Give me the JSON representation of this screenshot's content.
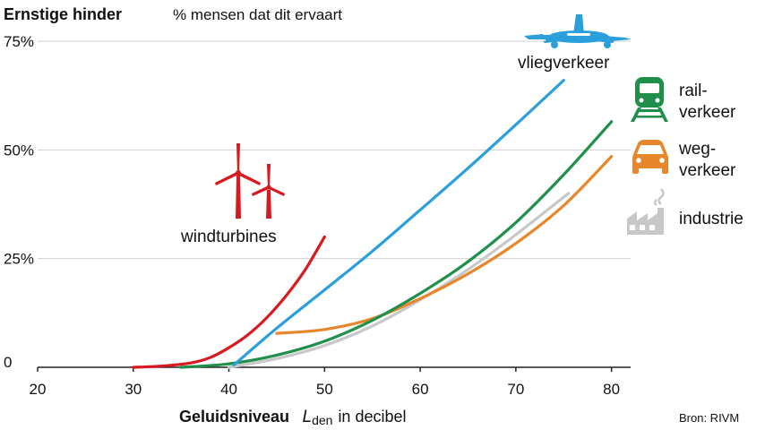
{
  "chart_data": {
    "type": "line",
    "title": "Ernstige hinder",
    "subtitle": "% mensen dat dit ervaart",
    "xlabel": {
      "bold": "Geluidsniveau",
      "var": "L",
      "var_sub": "den",
      "rest": "in decibel"
    },
    "source": "Bron: RIVM",
    "xlim": [
      20,
      82
    ],
    "ylim": [
      0,
      75
    ],
    "x_ticks": [
      "20",
      "30",
      "40",
      "50",
      "60",
      "70",
      "80"
    ],
    "x_tick_values": [
      20,
      30,
      40,
      50,
      60,
      70,
      80
    ],
    "y_ticks": [
      "0",
      "25%",
      "50%",
      "75%"
    ],
    "y_tick_values": [
      0,
      25,
      50,
      75
    ],
    "grid": "horizontal",
    "series": [
      {
        "name": "windturbines",
        "color": "#d71920",
        "icon": "wind-turbine-icon",
        "x": [
          30,
          33,
          36,
          38,
          40,
          42,
          44,
          46,
          48,
          50
        ],
        "y": [
          0,
          0.3,
          1.0,
          2.2,
          4.5,
          7.5,
          11.5,
          16.5,
          22.5,
          30
        ]
      },
      {
        "name": "vliegverkeer",
        "color": "#2a9fdc",
        "icon": "airplane-icon",
        "x": [
          40.5,
          45,
          50,
          55,
          60,
          65,
          70,
          75
        ],
        "y": [
          0.5,
          9,
          17.8,
          26.7,
          36.2,
          45.8,
          55.8,
          66
        ]
      },
      {
        "name": "rail- verkeer",
        "label_lines": [
          "rail-",
          "verkeer"
        ],
        "color": "#1f8f4a",
        "icon": "train-icon",
        "x": [
          35,
          40,
          45,
          50,
          55,
          60,
          65,
          70,
          75,
          80
        ],
        "y": [
          0,
          0.8,
          2.8,
          6,
          10.8,
          17,
          24.3,
          33.3,
          44.3,
          56.5
        ]
      },
      {
        "name": "weg- verkeer",
        "label_lines": [
          "weg-",
          "verkeer"
        ],
        "color": "#e8862c",
        "icon": "car-icon",
        "x": [
          45,
          50,
          55,
          60,
          65,
          70,
          75,
          80
        ],
        "y": [
          7.8,
          8.7,
          11.2,
          15.8,
          21.5,
          28.5,
          37.2,
          48.5
        ]
      },
      {
        "name": "industrie",
        "color": "#c8c8c8",
        "icon": "factory-icon",
        "x": [
          40,
          45,
          50,
          55,
          60,
          65,
          70,
          75.5
        ],
        "y": [
          0,
          2,
          5,
          9.5,
          15.5,
          22.5,
          30.5,
          40
        ]
      }
    ]
  }
}
